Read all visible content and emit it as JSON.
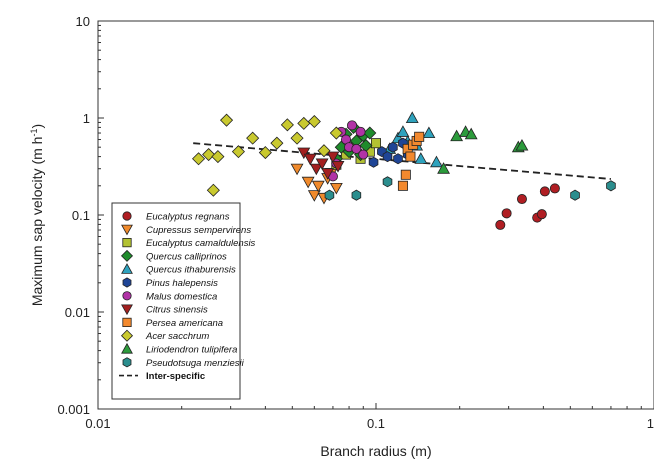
{
  "chart_data": {
    "type": "scatter",
    "title": "",
    "xlabel": "Branch radius (m)",
    "ylabel": "Maximum sap velocity (m h",
    "ylabel_superscript": "-1",
    "ylabel_suffix": ")",
    "xscale": "log",
    "yscale": "log",
    "xlim": [
      0.01,
      1
    ],
    "ylim": [
      0.001,
      10
    ],
    "x_ticks": [
      0.01,
      0.1,
      1
    ],
    "x_tick_labels": [
      "0.01",
      "0.1",
      "1"
    ],
    "y_ticks": [
      0.001,
      0.01,
      0.1,
      1,
      10
    ],
    "y_tick_labels": [
      "0.001",
      "0.01",
      "0.1",
      "1",
      "10"
    ],
    "grid": false,
    "legend_position": "bottom-left",
    "series": [
      {
        "name": "Eucalyptus regnans",
        "marker": "circle",
        "color": "#b01e23",
        "x": [
          0.28,
          0.295,
          0.335,
          0.38,
          0.395,
          0.405,
          0.44
        ],
        "y": [
          0.079,
          0.104,
          0.146,
          0.094,
          0.102,
          0.175,
          0.188
        ]
      },
      {
        "name": "Cupressus sempervirens",
        "marker": "triangle-down",
        "color": "#f08a2c",
        "x": [
          0.052,
          0.057,
          0.06,
          0.062,
          0.065,
          0.067,
          0.069,
          0.072
        ],
        "y": [
          0.3,
          0.22,
          0.16,
          0.2,
          0.15,
          0.24,
          0.27,
          0.19
        ]
      },
      {
        "name": "Eucalyptus camaldulensis",
        "marker": "square",
        "color": "#b3c232",
        "x": [
          0.072,
          0.078,
          0.083,
          0.088,
          0.095,
          0.1
        ],
        "y": [
          0.33,
          0.42,
          0.5,
          0.38,
          0.45,
          0.55
        ]
      },
      {
        "name": "Quercus calliprinos",
        "marker": "diamond",
        "color": "#1f8b2c",
        "x": [
          0.072,
          0.075,
          0.078,
          0.08,
          0.083,
          0.085,
          0.088,
          0.09,
          0.092,
          0.095
        ],
        "y": [
          0.38,
          0.5,
          0.68,
          0.45,
          0.8,
          0.58,
          0.42,
          0.66,
          0.52,
          0.7
        ]
      },
      {
        "name": "Quercus ithaburensis",
        "marker": "triangle-up",
        "color": "#2ea2bd",
        "x": [
          0.112,
          0.12,
          0.125,
          0.13,
          0.135,
          0.14,
          0.145,
          0.155,
          0.165
        ],
        "y": [
          0.48,
          0.62,
          0.72,
          0.57,
          1.0,
          0.52,
          0.38,
          0.7,
          0.35
        ]
      },
      {
        "name": "Pinus halepensis",
        "marker": "hexagon",
        "color": "#1f4596",
        "x": [
          0.098,
          0.105,
          0.11,
          0.115,
          0.12,
          0.125,
          0.13
        ],
        "y": [
          0.35,
          0.45,
          0.4,
          0.5,
          0.38,
          0.55,
          0.42
        ]
      },
      {
        "name": "Malus domestica",
        "marker": "circle",
        "color": "#b133a6",
        "x": [
          0.07,
          0.072,
          0.075,
          0.078,
          0.08,
          0.082,
          0.085,
          0.088,
          0.09
        ],
        "y": [
          0.25,
          0.34,
          0.72,
          0.6,
          0.5,
          0.84,
          0.48,
          0.72,
          0.42
        ]
      },
      {
        "name": "Citrus sinensis",
        "marker": "triangle-down",
        "color": "#a32020",
        "x": [
          0.055,
          0.058,
          0.061,
          0.064,
          0.067,
          0.07,
          0.073
        ],
        "y": [
          0.44,
          0.38,
          0.3,
          0.34,
          0.27,
          0.4,
          0.32
        ]
      },
      {
        "name": "Persea americana",
        "marker": "square",
        "color": "#f3892e",
        "x": [
          0.125,
          0.128,
          0.13,
          0.133,
          0.136,
          0.14,
          0.143
        ],
        "y": [
          0.2,
          0.26,
          0.48,
          0.4,
          0.53,
          0.58,
          0.64
        ]
      },
      {
        "name": "Acer sacchrum",
        "marker": "diamond",
        "color": "#c9c92f",
        "x": [
          0.023,
          0.025,
          0.026,
          0.027,
          0.029,
          0.032,
          0.036,
          0.04,
          0.044,
          0.048,
          0.052,
          0.055,
          0.06,
          0.065,
          0.072
        ],
        "y": [
          0.38,
          0.42,
          0.18,
          0.4,
          0.95,
          0.45,
          0.62,
          0.44,
          0.55,
          0.85,
          0.62,
          0.88,
          0.92,
          0.46,
          0.7
        ]
      },
      {
        "name": "Liriodendron tulipifera",
        "marker": "triangle-up",
        "color": "#2c9b3c",
        "x": [
          0.175,
          0.195,
          0.21,
          0.22,
          0.325,
          0.335
        ],
        "y": [
          0.3,
          0.65,
          0.72,
          0.68,
          0.5,
          0.52
        ]
      },
      {
        "name": "Pseudotsuga menziesii",
        "marker": "hexagon",
        "color": "#2b8e8e",
        "x": [
          0.068,
          0.085,
          0.11,
          0.52,
          0.7
        ],
        "y": [
          0.16,
          0.16,
          0.22,
          0.16,
          0.2
        ]
      }
    ],
    "trend_line": {
      "name": "Inter-specific",
      "style": "dashed",
      "color": "#222222",
      "x": [
        0.022,
        0.7
      ],
      "y": [
        0.55,
        0.235
      ]
    }
  }
}
